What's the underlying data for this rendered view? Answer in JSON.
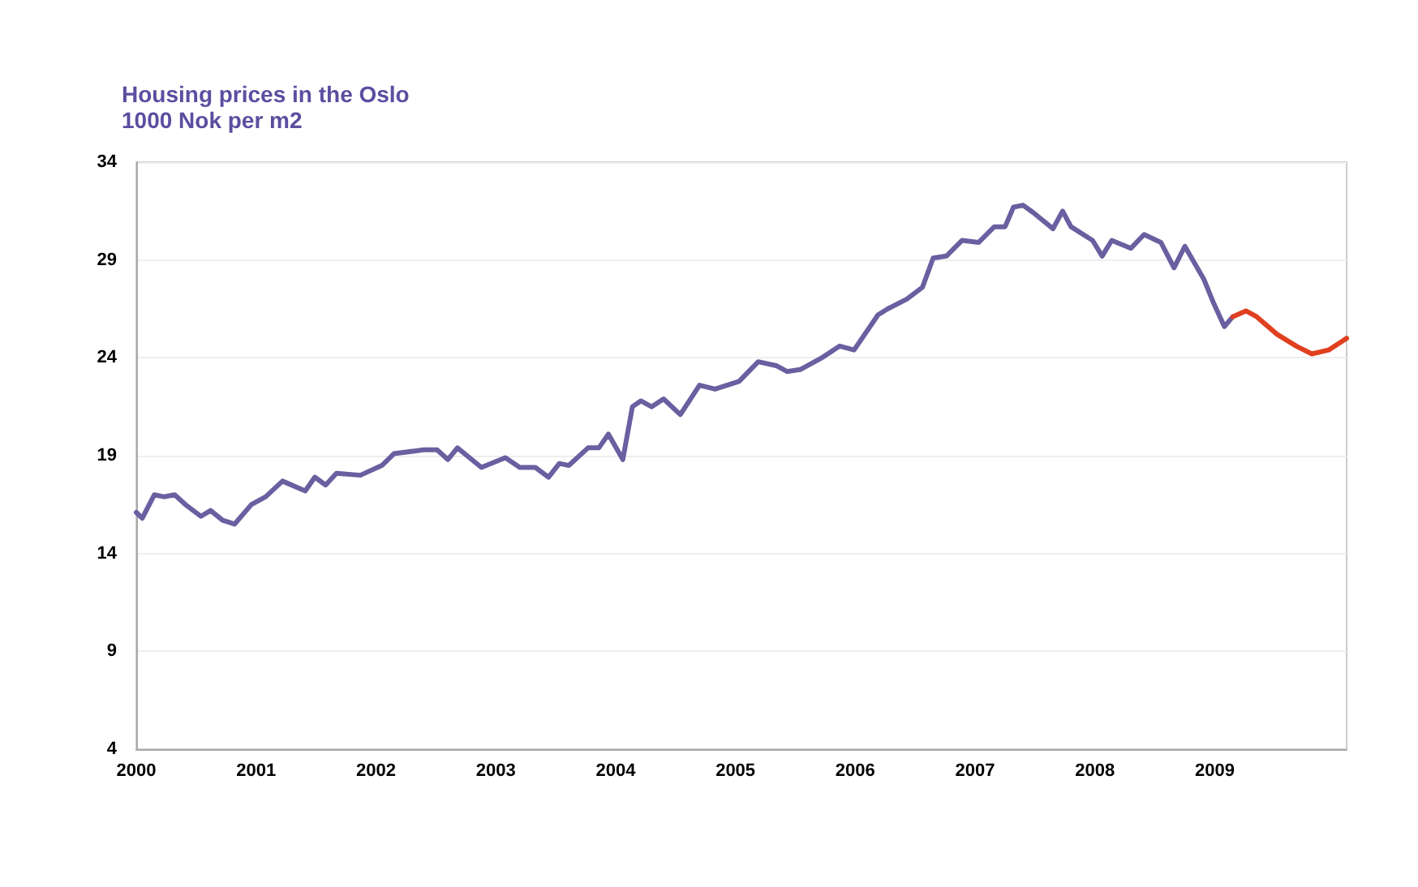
{
  "chart_data": {
    "type": "line",
    "title": "Housing prices in the Oslo",
    "subtitle": "1000 Nok per m2",
    "xlim": [
      2000,
      2010.1
    ],
    "xticks": [
      2000,
      2001,
      2002,
      2003,
      2004,
      2005,
      2006,
      2007,
      2008,
      2009
    ],
    "ylim": [
      4,
      34
    ],
    "yticks": [
      4,
      9,
      14,
      19,
      24,
      29,
      34
    ],
    "grid": "y",
    "marker": "none",
    "line_style": "solid",
    "series": [
      {
        "color": "#6a5fa0",
        "x": [
          2000.0,
          2000.05,
          2000.15,
          2000.23,
          2000.32,
          2000.41,
          2000.54,
          2000.62,
          2000.72,
          2000.82,
          2000.96,
          2001.08,
          2001.22,
          2001.41,
          2001.49,
          2001.58,
          2001.67,
          2001.87,
          2002.05,
          2002.15,
          2002.4,
          2002.51,
          2002.6,
          2002.68,
          2002.88,
          2003.08,
          2003.2,
          2003.33,
          2003.44,
          2003.53,
          2003.61,
          2003.77,
          2003.86,
          2003.94,
          2004.06,
          2004.14,
          2004.21,
          2004.3,
          2004.4,
          2004.54,
          2004.7,
          2004.83,
          2005.03,
          2005.19,
          2005.34,
          2005.43,
          2005.54,
          2005.72,
          2005.87,
          2005.99,
          2006.19,
          2006.27,
          2006.43,
          2006.56,
          2006.65,
          2006.76,
          2006.89,
          2007.03,
          2007.16,
          2007.25,
          2007.32,
          2007.4,
          2007.49,
          2007.65,
          2007.73,
          2007.8,
          2007.98,
          2008.06,
          2008.14,
          2008.3,
          2008.41,
          2008.55,
          2008.66,
          2008.75,
          2008.91,
          2008.99,
          2009.08,
          2009.15
        ],
        "values": [
          16.1,
          15.8,
          17.0,
          16.9,
          17.0,
          16.5,
          15.9,
          16.2,
          15.7,
          15.5,
          16.5,
          16.9,
          17.7,
          17.2,
          17.9,
          17.5,
          18.1,
          18.0,
          18.5,
          19.1,
          19.3,
          19.3,
          18.8,
          19.4,
          18.4,
          18.9,
          18.4,
          18.4,
          17.9,
          18.6,
          18.5,
          19.4,
          19.4,
          20.1,
          18.8,
          21.5,
          21.8,
          21.5,
          21.9,
          21.1,
          22.6,
          22.4,
          22.8,
          23.8,
          23.6,
          23.3,
          23.4,
          24.0,
          24.6,
          24.4,
          26.2,
          26.5,
          27.0,
          27.6,
          29.1,
          29.2,
          30.0,
          29.9,
          30.7,
          30.7,
          31.7,
          31.8,
          31.4,
          30.6,
          31.5,
          30.7,
          30.0,
          29.2,
          30.0,
          29.6,
          30.3,
          29.9,
          28.6,
          29.7,
          28.0,
          26.8,
          25.6,
          26.1
        ]
      },
      {
        "color": "#e0401f",
        "x": [
          2009.15,
          2009.26,
          2009.35,
          2009.52,
          2009.68,
          2009.81,
          2009.95,
          2010.1
        ],
        "values": [
          26.1,
          26.4,
          26.1,
          25.2,
          24.6,
          24.2,
          24.4,
          25.0
        ]
      }
    ]
  }
}
